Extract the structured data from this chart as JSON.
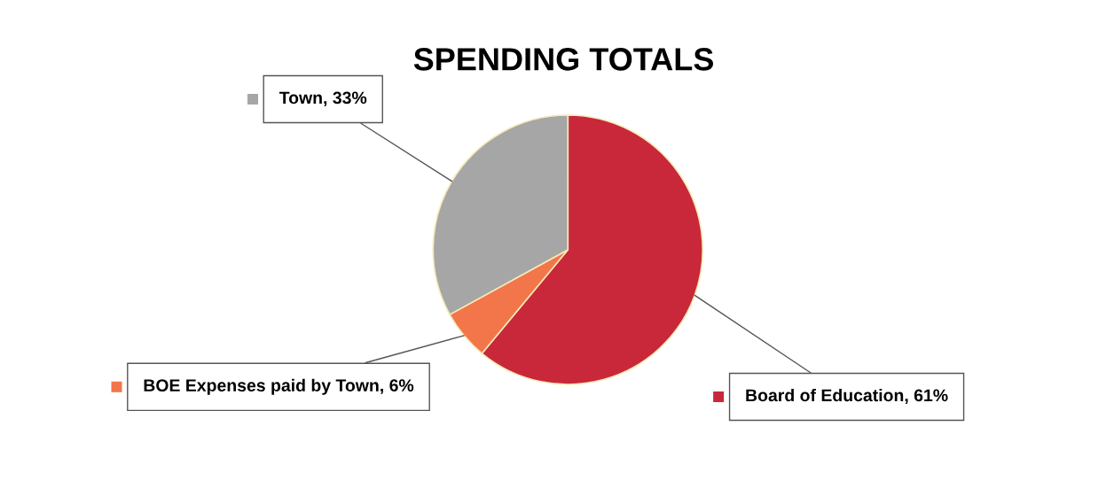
{
  "chart_data": {
    "type": "pie",
    "title": "SPENDING TOTALS",
    "categories": [
      "Board of Education",
      "BOE Expenses paid by Town",
      "Town"
    ],
    "values": [
      61,
      6,
      33
    ],
    "colors": [
      "#c8283a",
      "#f2764a",
      "#a6a6a6"
    ],
    "value_labels": [
      "61%",
      "6%",
      "33%"
    ],
    "legend": "left"
  }
}
